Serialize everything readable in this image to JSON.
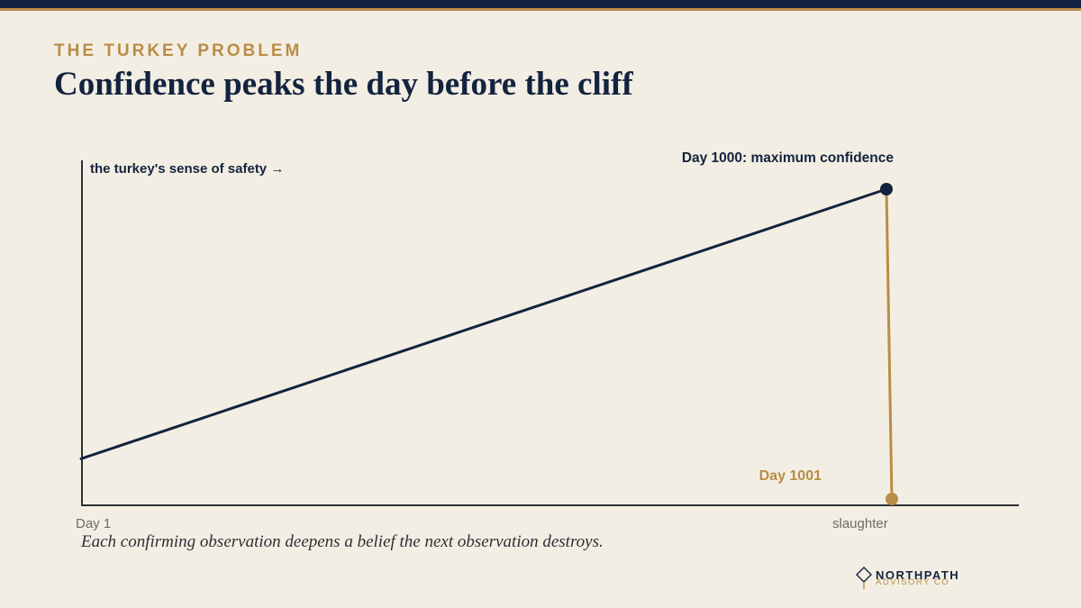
{
  "header": {
    "eyebrow": "THE TURKEY PROBLEM",
    "title": "Confidence peaks the day before the cliff"
  },
  "chart_data": {
    "type": "line",
    "ylabel": "the turkey's sense of safety →",
    "x_tick_labels": [
      "Day 1",
      "slaughter"
    ],
    "series": [
      {
        "role": "rise",
        "color": "#13233f",
        "points": [
          {
            "x": 1,
            "y": 0.13
          },
          {
            "x": 1000,
            "y": 1.0
          }
        ]
      },
      {
        "role": "drop",
        "color": "#b98d45",
        "points": [
          {
            "x": 1000,
            "y": 1.0
          },
          {
            "x": 1001,
            "y": 0.0
          }
        ]
      }
    ],
    "annotations": [
      {
        "text": "Day 1000: maximum confidence",
        "x": 1000,
        "y": 1.0,
        "color": "#13233f"
      },
      {
        "text": "Day 1001",
        "x": 1001,
        "y": 0.0,
        "color": "#b98d45"
      }
    ],
    "grid": false,
    "legend": "none"
  },
  "caption": "Each confirming observation deepens a belief the next observation destroys.",
  "brand": {
    "name": "NORTHPATH",
    "tagline": "ADVISORY CO"
  },
  "colors": {
    "background": "#f3eee3",
    "navy": "#13233f",
    "gold": "#b98d45"
  }
}
